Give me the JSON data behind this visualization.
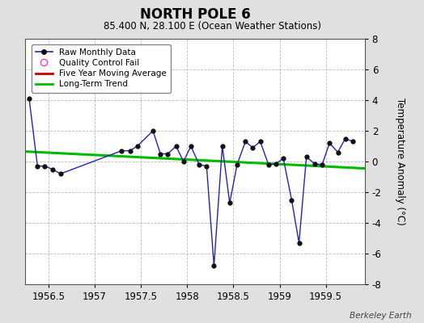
{
  "title": "NORTH POLE 6",
  "subtitle": "85.400 N, 28.100 E (Ocean Weather Stations)",
  "credit": "Berkeley Earth",
  "ylabel": "Temperature Anomaly (°C)",
  "xlim": [
    1956.25,
    1959.92
  ],
  "ylim": [
    -8,
    8
  ],
  "yticks": [
    -8,
    -6,
    -4,
    -2,
    0,
    2,
    4,
    6,
    8
  ],
  "xticks": [
    1956.5,
    1957.0,
    1957.5,
    1958.0,
    1958.5,
    1959.0,
    1959.5
  ],
  "xtick_labels": [
    "1956.5",
    "1957",
    "1957.5",
    "1958",
    "1958.5",
    "1959",
    "1959.5"
  ],
  "raw_x": [
    1956.29,
    1956.38,
    1956.46,
    1956.54,
    1956.63,
    1957.29,
    1957.38,
    1957.46,
    1957.63,
    1957.71,
    1957.79,
    1957.88,
    1957.96,
    1958.04,
    1958.13,
    1958.21,
    1958.29,
    1958.38,
    1958.46,
    1958.54,
    1958.63,
    1958.71,
    1958.79,
    1958.88,
    1958.96,
    1959.04,
    1959.13,
    1959.21,
    1959.29,
    1959.38,
    1959.46,
    1959.54,
    1959.63,
    1959.71,
    1959.79
  ],
  "raw_y": [
    4.1,
    -0.3,
    -0.3,
    -0.5,
    -0.8,
    0.7,
    0.7,
    1.0,
    2.0,
    0.5,
    0.5,
    1.0,
    0.0,
    1.0,
    -0.2,
    -0.3,
    -6.8,
    1.0,
    -2.7,
    -0.2,
    1.3,
    0.9,
    1.3,
    -0.2,
    -0.15,
    0.2,
    -2.5,
    -5.3,
    0.3,
    -0.15,
    -0.2,
    1.2,
    0.6,
    1.5,
    1.3
  ],
  "trend_x": [
    1956.25,
    1959.92
  ],
  "trend_y": [
    0.65,
    -0.45
  ],
  "bg_color": "#e0e0e0",
  "plot_bg_color": "#ffffff",
  "line_color": "#2222bb",
  "marker_color": "#111111",
  "trend_color": "#00bb00",
  "mavg_color": "#cc0000",
  "grid_color": "#bbbbbb"
}
